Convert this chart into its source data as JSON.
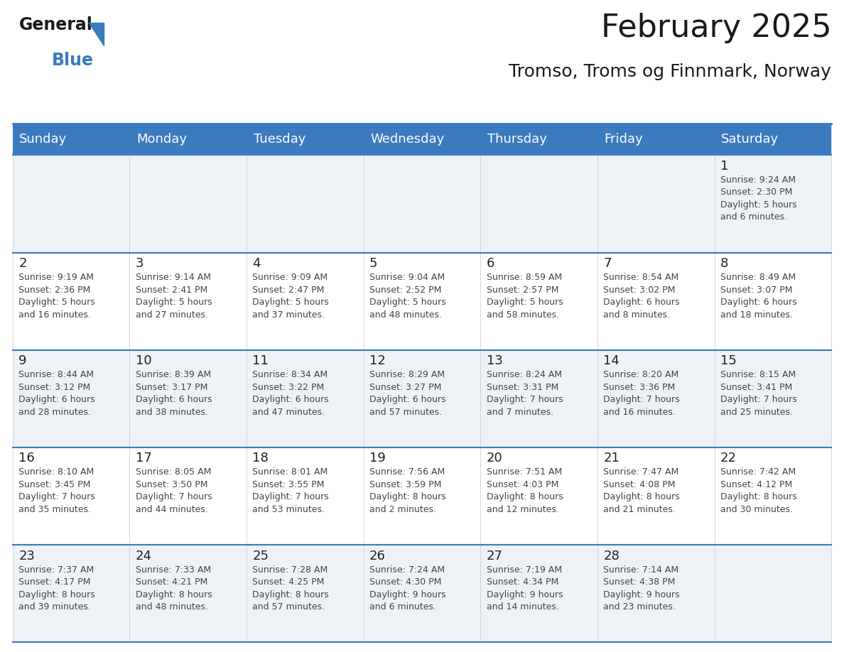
{
  "title": "February 2025",
  "subtitle": "Tromso, Troms og Finnmark, Norway",
  "header_bg_color": "#3a7bbf",
  "header_text_color": "#ffffff",
  "cell_bg_even": "#eef2f7",
  "cell_bg_odd": "#ffffff",
  "border_color": "#3a7bbf",
  "day_headers": [
    "Sunday",
    "Monday",
    "Tuesday",
    "Wednesday",
    "Thursday",
    "Friday",
    "Saturday"
  ],
  "days_data": [
    {
      "day": 1,
      "col": 6,
      "row": 0,
      "sunrise": "9:24 AM",
      "sunset": "2:30 PM",
      "daylight": "5 hours\nand 6 minutes."
    },
    {
      "day": 2,
      "col": 0,
      "row": 1,
      "sunrise": "9:19 AM",
      "sunset": "2:36 PM",
      "daylight": "5 hours\nand 16 minutes."
    },
    {
      "day": 3,
      "col": 1,
      "row": 1,
      "sunrise": "9:14 AM",
      "sunset": "2:41 PM",
      "daylight": "5 hours\nand 27 minutes."
    },
    {
      "day": 4,
      "col": 2,
      "row": 1,
      "sunrise": "9:09 AM",
      "sunset": "2:47 PM",
      "daylight": "5 hours\nand 37 minutes."
    },
    {
      "day": 5,
      "col": 3,
      "row": 1,
      "sunrise": "9:04 AM",
      "sunset": "2:52 PM",
      "daylight": "5 hours\nand 48 minutes."
    },
    {
      "day": 6,
      "col": 4,
      "row": 1,
      "sunrise": "8:59 AM",
      "sunset": "2:57 PM",
      "daylight": "5 hours\nand 58 minutes."
    },
    {
      "day": 7,
      "col": 5,
      "row": 1,
      "sunrise": "8:54 AM",
      "sunset": "3:02 PM",
      "daylight": "6 hours\nand 8 minutes."
    },
    {
      "day": 8,
      "col": 6,
      "row": 1,
      "sunrise": "8:49 AM",
      "sunset": "3:07 PM",
      "daylight": "6 hours\nand 18 minutes."
    },
    {
      "day": 9,
      "col": 0,
      "row": 2,
      "sunrise": "8:44 AM",
      "sunset": "3:12 PM",
      "daylight": "6 hours\nand 28 minutes."
    },
    {
      "day": 10,
      "col": 1,
      "row": 2,
      "sunrise": "8:39 AM",
      "sunset": "3:17 PM",
      "daylight": "6 hours\nand 38 minutes."
    },
    {
      "day": 11,
      "col": 2,
      "row": 2,
      "sunrise": "8:34 AM",
      "sunset": "3:22 PM",
      "daylight": "6 hours\nand 47 minutes."
    },
    {
      "day": 12,
      "col": 3,
      "row": 2,
      "sunrise": "8:29 AM",
      "sunset": "3:27 PM",
      "daylight": "6 hours\nand 57 minutes."
    },
    {
      "day": 13,
      "col": 4,
      "row": 2,
      "sunrise": "8:24 AM",
      "sunset": "3:31 PM",
      "daylight": "7 hours\nand 7 minutes."
    },
    {
      "day": 14,
      "col": 5,
      "row": 2,
      "sunrise": "8:20 AM",
      "sunset": "3:36 PM",
      "daylight": "7 hours\nand 16 minutes."
    },
    {
      "day": 15,
      "col": 6,
      "row": 2,
      "sunrise": "8:15 AM",
      "sunset": "3:41 PM",
      "daylight": "7 hours\nand 25 minutes."
    },
    {
      "day": 16,
      "col": 0,
      "row": 3,
      "sunrise": "8:10 AM",
      "sunset": "3:45 PM",
      "daylight": "7 hours\nand 35 minutes."
    },
    {
      "day": 17,
      "col": 1,
      "row": 3,
      "sunrise": "8:05 AM",
      "sunset": "3:50 PM",
      "daylight": "7 hours\nand 44 minutes."
    },
    {
      "day": 18,
      "col": 2,
      "row": 3,
      "sunrise": "8:01 AM",
      "sunset": "3:55 PM",
      "daylight": "7 hours\nand 53 minutes."
    },
    {
      "day": 19,
      "col": 3,
      "row": 3,
      "sunrise": "7:56 AM",
      "sunset": "3:59 PM",
      "daylight": "8 hours\nand 2 minutes."
    },
    {
      "day": 20,
      "col": 4,
      "row": 3,
      "sunrise": "7:51 AM",
      "sunset": "4:03 PM",
      "daylight": "8 hours\nand 12 minutes."
    },
    {
      "day": 21,
      "col": 5,
      "row": 3,
      "sunrise": "7:47 AM",
      "sunset": "4:08 PM",
      "daylight": "8 hours\nand 21 minutes."
    },
    {
      "day": 22,
      "col": 6,
      "row": 3,
      "sunrise": "7:42 AM",
      "sunset": "4:12 PM",
      "daylight": "8 hours\nand 30 minutes."
    },
    {
      "day": 23,
      "col": 0,
      "row": 4,
      "sunrise": "7:37 AM",
      "sunset": "4:17 PM",
      "daylight": "8 hours\nand 39 minutes."
    },
    {
      "day": 24,
      "col": 1,
      "row": 4,
      "sunrise": "7:33 AM",
      "sunset": "4:21 PM",
      "daylight": "8 hours\nand 48 minutes."
    },
    {
      "day": 25,
      "col": 2,
      "row": 4,
      "sunrise": "7:28 AM",
      "sunset": "4:25 PM",
      "daylight": "8 hours\nand 57 minutes."
    },
    {
      "day": 26,
      "col": 3,
      "row": 4,
      "sunrise": "7:24 AM",
      "sunset": "4:30 PM",
      "daylight": "9 hours\nand 6 minutes."
    },
    {
      "day": 27,
      "col": 4,
      "row": 4,
      "sunrise": "7:19 AM",
      "sunset": "4:34 PM",
      "daylight": "9 hours\nand 14 minutes."
    },
    {
      "day": 28,
      "col": 5,
      "row": 4,
      "sunrise": "7:14 AM",
      "sunset": "4:38 PM",
      "daylight": "9 hours\nand 23 minutes."
    }
  ],
  "num_rows": 5,
  "num_cols": 7,
  "title_fontsize": 32,
  "subtitle_fontsize": 18,
  "header_fontsize": 13,
  "day_num_fontsize": 13,
  "cell_text_fontsize": 9,
  "logo_text_general": "General",
  "logo_text_blue": "Blue",
  "logo_color_general": "#1a1a1a",
  "logo_color_blue": "#3a7bbf",
  "logo_triangle_color": "#3a7bbf"
}
